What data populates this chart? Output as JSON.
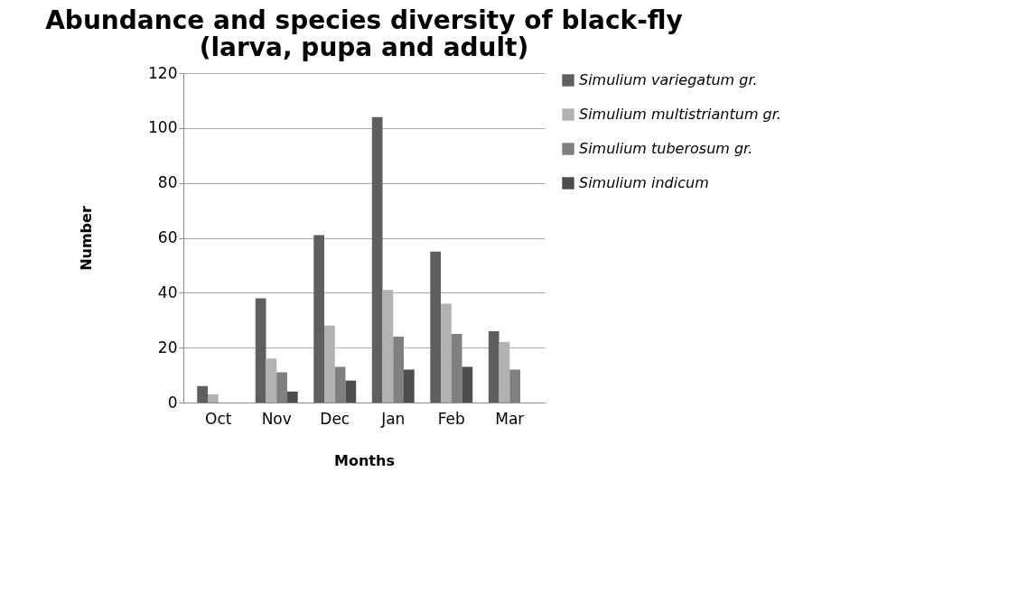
{
  "chart_data": {
    "type": "bar",
    "title": "Abundance and species diversity of black-fly (larva, pupa and adult)",
    "xlabel": "Months",
    "ylabel": "Number",
    "categories": [
      "Oct",
      "Nov",
      "Dec",
      "Jan",
      "Feb",
      "Mar"
    ],
    "series": [
      {
        "name": "Simulium variegatum gr.",
        "color": "#5f5f5f",
        "values": [
          6,
          38,
          61,
          104,
          55,
          26
        ]
      },
      {
        "name": "Simulium multistriantum gr.",
        "color": "#b2b2b2",
        "values": [
          3,
          16,
          28,
          41,
          36,
          22
        ]
      },
      {
        "name": "Simulium tuberosum gr.",
        "color": "#808080",
        "values": [
          0,
          11,
          13,
          24,
          25,
          12
        ]
      },
      {
        "name": "Simulium indicum",
        "color": "#4d4d4d",
        "values": [
          0,
          4,
          8,
          12,
          13,
          0
        ]
      }
    ],
    "ylim": [
      0,
      120
    ],
    "yticks": [
      0,
      20,
      40,
      60,
      80,
      100,
      120
    ],
    "grid": "y",
    "legend": "right"
  }
}
